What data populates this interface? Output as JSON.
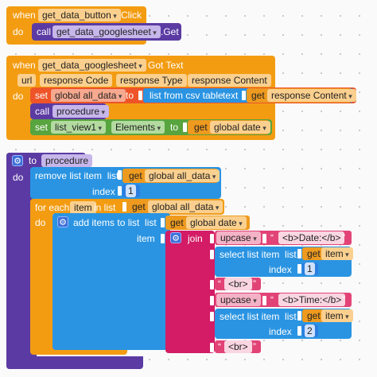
{
  "event1": {
    "when": "when",
    "component": "get_data_button",
    "event": "Click",
    "do": "do",
    "call": "call",
    "target": "get_data_googlesheet",
    "method": ".Get"
  },
  "event2": {
    "when": "when",
    "component": "get_data_googlesheet",
    "event": "Got Text",
    "params": [
      "url",
      "response Code",
      "response Type",
      "response Content"
    ],
    "do": "do",
    "set": "set",
    "variable": "global all_data",
    "to": "to",
    "list_from_csv": "list from csv table",
    "text": "text",
    "get": "get",
    "response_content": "response Content",
    "call": "call",
    "procedure": "procedure",
    "set_component": "list_view1",
    "property": "Elements",
    "to2": "to",
    "get2": "get",
    "global_date": "global date"
  },
  "procedure_block": {
    "to": "to",
    "name": "procedure",
    "do": "do",
    "remove_list_item": "remove list item",
    "list": "list",
    "get_all_data": "get",
    "all_data": "global all_data",
    "index": "index",
    "index_value": "1",
    "for_each": "for each",
    "item": "item",
    "in_list": "in list",
    "loop_get": "get",
    "loop_list": "global all_data",
    "loop_do": "do",
    "add_items": "add items to list",
    "add_list": "list",
    "add_get": "get",
    "add_global_date": "global date",
    "item_label": "item",
    "join": "join",
    "upcase1": "upcase",
    "date_string": "<b>Date:</b>",
    "select1": "select list item",
    "select1_list": "list",
    "select1_get": "get",
    "select1_item": "item",
    "select1_index": "index",
    "select1_index_val": "1",
    "br1": "<br>",
    "upcase2": "upcase",
    "time_string": "<b>Time:</b>",
    "select2": "select list item",
    "select2_list": "list",
    "select2_get": "get",
    "select2_item": "item",
    "select2_index": "index",
    "select2_index_val": "2",
    "br2": "<br>",
    "quote_open": "“",
    "quote_close": "”"
  }
}
